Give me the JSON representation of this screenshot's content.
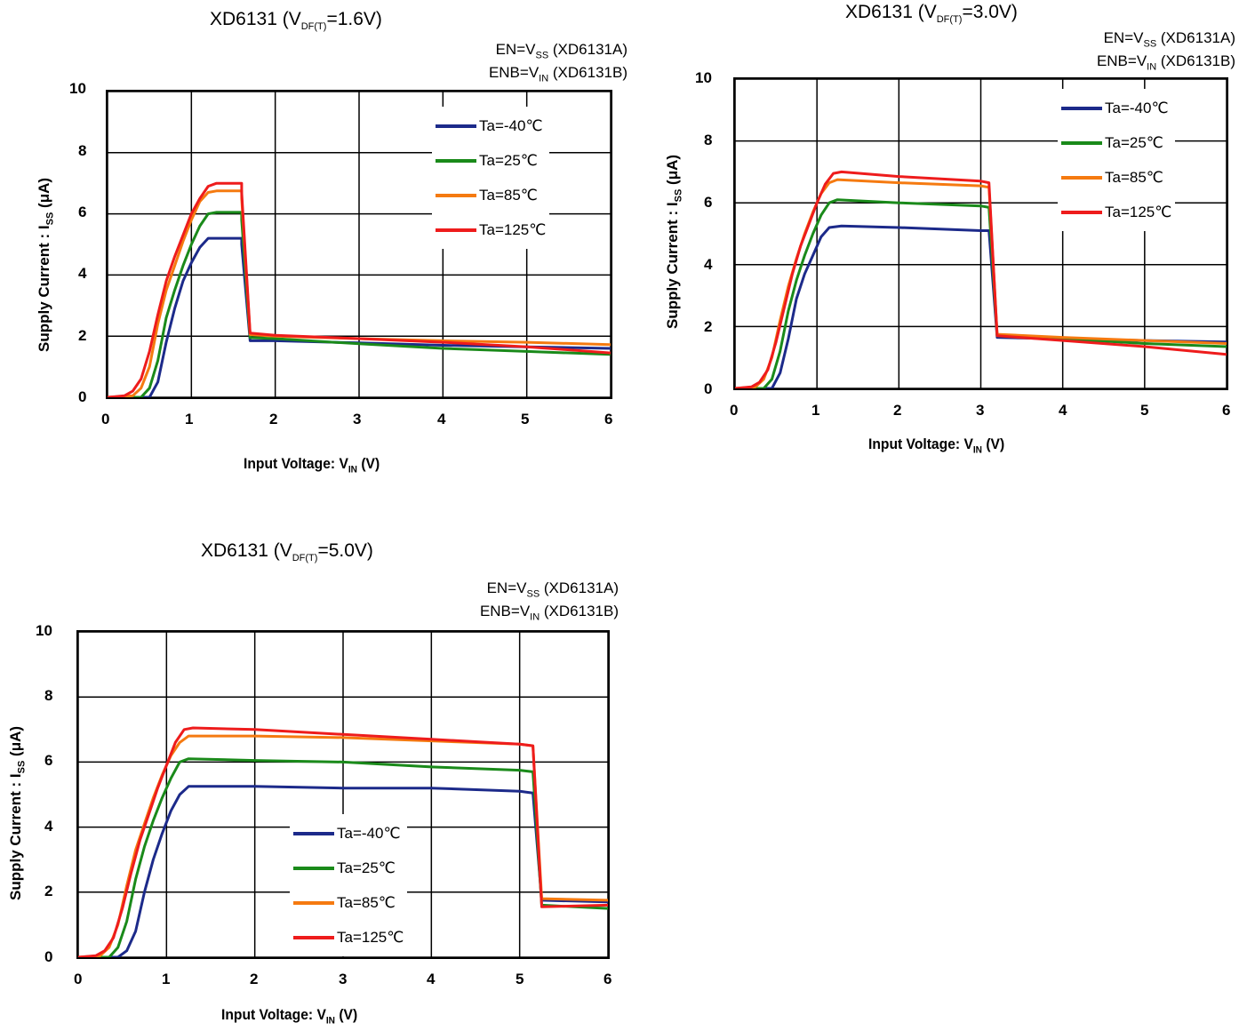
{
  "chart_data": [
    {
      "type": "line",
      "title_main": "XD6131 (V",
      "title_sub": "DF(T)",
      "title_tail": "=1.6V)",
      "cond1_main": "EN=V",
      "cond1_sub": "SS",
      "cond1_tail": " (XD6131A)",
      "cond2_main": "ENB=V",
      "cond2_sub": "IN",
      "cond2_tail": " (XD6131B)",
      "xlabel_main": "Input Voltage: V",
      "xlabel_sub": "IN",
      "xlabel_tail": " (V)",
      "ylabel_main": "Supply Current : I",
      "ylabel_sub": "SS",
      "ylabel_tail": " (μA)",
      "xlim": [
        0,
        6
      ],
      "ylim": [
        0,
        10
      ],
      "xticks": [
        "0",
        "1",
        "2",
        "3",
        "4",
        "5",
        "6"
      ],
      "yticks": [
        "0",
        "2",
        "4",
        "6",
        "8",
        "10"
      ],
      "grid": true,
      "legend_position": "top-right",
      "series": [
        {
          "name": "Ta=-40℃",
          "color": "#1c2a8a",
          "points": [
            [
              0,
              0
            ],
            [
              0.5,
              0
            ],
            [
              0.6,
              0.5
            ],
            [
              0.7,
              1.8
            ],
            [
              0.8,
              2.9
            ],
            [
              0.9,
              3.8
            ],
            [
              1.0,
              4.4
            ],
            [
              1.1,
              4.9
            ],
            [
              1.2,
              5.2
            ],
            [
              1.6,
              5.2
            ],
            [
              1.6,
              5.0
            ],
            [
              1.7,
              1.85
            ],
            [
              2,
              1.85
            ],
            [
              3,
              1.78
            ],
            [
              4,
              1.7
            ],
            [
              5,
              1.65
            ],
            [
              6,
              1.6
            ]
          ]
        },
        {
          "name": "Ta=25℃",
          "color": "#1a8a1a",
          "points": [
            [
              0,
              0
            ],
            [
              0.4,
              0
            ],
            [
              0.5,
              0.3
            ],
            [
              0.6,
              1.2
            ],
            [
              0.7,
              2.6
            ],
            [
              0.8,
              3.5
            ],
            [
              0.9,
              4.3
            ],
            [
              1.0,
              5.0
            ],
            [
              1.1,
              5.6
            ],
            [
              1.2,
              6.0
            ],
            [
              1.3,
              6.05
            ],
            [
              1.6,
              6.05
            ],
            [
              1.6,
              5.8
            ],
            [
              1.7,
              1.95
            ],
            [
              2,
              1.92
            ],
            [
              3,
              1.75
            ],
            [
              4,
              1.6
            ],
            [
              5,
              1.5
            ],
            [
              6,
              1.4
            ]
          ]
        },
        {
          "name": "Ta=85℃",
          "color": "#f57a10",
          "points": [
            [
              0,
              0
            ],
            [
              0.3,
              0.05
            ],
            [
              0.4,
              0.3
            ],
            [
              0.5,
              1.0
            ],
            [
              0.6,
              2.4
            ],
            [
              0.7,
              3.5
            ],
            [
              0.8,
              4.3
            ],
            [
              0.9,
              5.1
            ],
            [
              1.0,
              5.8
            ],
            [
              1.1,
              6.4
            ],
            [
              1.2,
              6.7
            ],
            [
              1.3,
              6.75
            ],
            [
              1.6,
              6.75
            ],
            [
              1.6,
              6.5
            ],
            [
              1.7,
              2.05
            ],
            [
              2,
              2.0
            ],
            [
              3,
              1.92
            ],
            [
              4,
              1.85
            ],
            [
              5,
              1.8
            ],
            [
              6,
              1.72
            ]
          ]
        },
        {
          "name": "Ta=125℃",
          "color": "#ee1c1c",
          "points": [
            [
              0,
              0
            ],
            [
              0.2,
              0.05
            ],
            [
              0.3,
              0.2
            ],
            [
              0.4,
              0.6
            ],
            [
              0.5,
              1.5
            ],
            [
              0.6,
              2.7
            ],
            [
              0.7,
              3.8
            ],
            [
              0.8,
              4.6
            ],
            [
              0.9,
              5.3
            ],
            [
              1.0,
              6.0
            ],
            [
              1.1,
              6.5
            ],
            [
              1.2,
              6.9
            ],
            [
              1.3,
              7.0
            ],
            [
              1.6,
              7.0
            ],
            [
              1.6,
              6.7
            ],
            [
              1.7,
              2.1
            ],
            [
              2,
              2.03
            ],
            [
              3,
              1.92
            ],
            [
              4,
              1.8
            ],
            [
              5,
              1.65
            ],
            [
              6,
              1.45
            ]
          ]
        }
      ]
    },
    {
      "type": "line",
      "title_main": "XD6131 (V",
      "title_sub": "DF(T)",
      "title_tail": "=3.0V)",
      "cond1_main": "EN=V",
      "cond1_sub": "SS",
      "cond1_tail": " (XD6131A)",
      "cond2_main": "ENB=V",
      "cond2_sub": "IN",
      "cond2_tail": " (XD6131B)",
      "xlabel_main": "Input Voltage: V",
      "xlabel_sub": "IN",
      "xlabel_tail": " (V)",
      "ylabel_main": "Supply Current : I",
      "ylabel_sub": "SS",
      "ylabel_tail": " (μA)",
      "xlim": [
        0,
        6
      ],
      "ylim": [
        0,
        10
      ],
      "xticks": [
        "0",
        "1",
        "2",
        "3",
        "4",
        "5",
        "6"
      ],
      "yticks": [
        "0",
        "2",
        "4",
        "6",
        "8",
        "10"
      ],
      "grid": true,
      "legend_position": "top-right",
      "series": [
        {
          "name": "Ta=-40℃",
          "color": "#1c2a8a",
          "points": [
            [
              0,
              0
            ],
            [
              0.45,
              0
            ],
            [
              0.55,
              0.5
            ],
            [
              0.65,
              1.6
            ],
            [
              0.75,
              2.9
            ],
            [
              0.85,
              3.7
            ],
            [
              0.95,
              4.3
            ],
            [
              1.05,
              4.9
            ],
            [
              1.15,
              5.2
            ],
            [
              1.3,
              5.25
            ],
            [
              2,
              5.2
            ],
            [
              3,
              5.1
            ],
            [
              3.1,
              5.1
            ],
            [
              3.2,
              1.65
            ],
            [
              4,
              1.6
            ],
            [
              5,
              1.55
            ],
            [
              6,
              1.5
            ]
          ]
        },
        {
          "name": "Ta=25℃",
          "color": "#1a8a1a",
          "points": [
            [
              0,
              0
            ],
            [
              0.35,
              0
            ],
            [
              0.45,
              0.3
            ],
            [
              0.55,
              1.2
            ],
            [
              0.65,
              2.5
            ],
            [
              0.75,
              3.5
            ],
            [
              0.85,
              4.3
            ],
            [
              0.95,
              5.0
            ],
            [
              1.05,
              5.6
            ],
            [
              1.15,
              6.0
            ],
            [
              1.25,
              6.1
            ],
            [
              2,
              6.0
            ],
            [
              3,
              5.9
            ],
            [
              3.1,
              5.85
            ],
            [
              3.2,
              1.7
            ],
            [
              4,
              1.6
            ],
            [
              5,
              1.45
            ],
            [
              6,
              1.35
            ]
          ]
        },
        {
          "name": "Ta=85℃",
          "color": "#f57a10",
          "points": [
            [
              0,
              0
            ],
            [
              0.25,
              0.05
            ],
            [
              0.35,
              0.3
            ],
            [
              0.45,
              1.0
            ],
            [
              0.55,
              2.2
            ],
            [
              0.65,
              3.3
            ],
            [
              0.75,
              4.2
            ],
            [
              0.85,
              5.0
            ],
            [
              0.95,
              5.7
            ],
            [
              1.05,
              6.3
            ],
            [
              1.15,
              6.65
            ],
            [
              1.25,
              6.75
            ],
            [
              2,
              6.65
            ],
            [
              3,
              6.55
            ],
            [
              3.1,
              6.5
            ],
            [
              3.2,
              1.75
            ],
            [
              4,
              1.65
            ],
            [
              5,
              1.55
            ],
            [
              6,
              1.45
            ]
          ]
        },
        {
          "name": "Ta=125℃",
          "color": "#ee1c1c",
          "points": [
            [
              0,
              0
            ],
            [
              0.2,
              0.05
            ],
            [
              0.3,
              0.2
            ],
            [
              0.4,
              0.6
            ],
            [
              0.5,
              1.5
            ],
            [
              0.6,
              2.6
            ],
            [
              0.7,
              3.7
            ],
            [
              0.8,
              4.6
            ],
            [
              0.9,
              5.3
            ],
            [
              1.0,
              6.0
            ],
            [
              1.1,
              6.6
            ],
            [
              1.2,
              6.95
            ],
            [
              1.3,
              7.0
            ],
            [
              2,
              6.85
            ],
            [
              3,
              6.7
            ],
            [
              3.1,
              6.65
            ],
            [
              3.2,
              1.7
            ],
            [
              4,
              1.55
            ],
            [
              5,
              1.35
            ],
            [
              6,
              1.1
            ]
          ]
        }
      ]
    },
    {
      "type": "line",
      "title_main": "XD6131 (V",
      "title_sub": "DF(T)",
      "title_tail": "=5.0V)",
      "cond1_main": "EN=V",
      "cond1_sub": "SS",
      "cond1_tail": " (XD6131A)",
      "cond2_main": "ENB=V",
      "cond2_sub": "IN",
      "cond2_tail": " (XD6131B)",
      "xlabel_main": "Input Voltage: V",
      "xlabel_sub": "IN",
      "xlabel_tail": " (V)",
      "ylabel_main": "Supply Current : I",
      "ylabel_sub": "SS",
      "ylabel_tail": " (μA)",
      "xlim": [
        0,
        6
      ],
      "ylim": [
        0,
        10
      ],
      "xticks": [
        "0",
        "1",
        "2",
        "3",
        "4",
        "5",
        "6"
      ],
      "yticks": [
        "0",
        "2",
        "4",
        "6",
        "8",
        "10"
      ],
      "grid": true,
      "legend_position": "bottom-center",
      "series": [
        {
          "name": "Ta=-40℃",
          "color": "#1c2a8a",
          "points": [
            [
              0,
              0
            ],
            [
              0.45,
              0
            ],
            [
              0.55,
              0.2
            ],
            [
              0.65,
              0.8
            ],
            [
              0.75,
              2.0
            ],
            [
              0.85,
              3.0
            ],
            [
              0.95,
              3.8
            ],
            [
              1.05,
              4.5
            ],
            [
              1.15,
              5.0
            ],
            [
              1.25,
              5.25
            ],
            [
              2,
              5.25
            ],
            [
              3,
              5.2
            ],
            [
              4,
              5.2
            ],
            [
              5,
              5.1
            ],
            [
              5.15,
              5.05
            ],
            [
              5.25,
              1.75
            ],
            [
              6,
              1.7
            ]
          ]
        },
        {
          "name": "Ta=25℃",
          "color": "#1a8a1a",
          "points": [
            [
              0,
              0
            ],
            [
              0.35,
              0
            ],
            [
              0.45,
              0.3
            ],
            [
              0.55,
              1.1
            ],
            [
              0.65,
              2.4
            ],
            [
              0.75,
              3.4
            ],
            [
              0.85,
              4.2
            ],
            [
              0.95,
              4.9
            ],
            [
              1.05,
              5.5
            ],
            [
              1.15,
              6.0
            ],
            [
              1.25,
              6.1
            ],
            [
              2,
              6.05
            ],
            [
              3,
              6.0
            ],
            [
              4,
              5.85
            ],
            [
              5,
              5.75
            ],
            [
              5.15,
              5.7
            ],
            [
              5.25,
              1.6
            ],
            [
              6,
              1.5
            ]
          ]
        },
        {
          "name": "Ta=85℃",
          "color": "#f57a10",
          "points": [
            [
              0,
              0
            ],
            [
              0.25,
              0.05
            ],
            [
              0.35,
              0.3
            ],
            [
              0.45,
              1.0
            ],
            [
              0.55,
              2.2
            ],
            [
              0.65,
              3.3
            ],
            [
              0.75,
              4.1
            ],
            [
              0.85,
              4.9
            ],
            [
              0.95,
              5.6
            ],
            [
              1.05,
              6.2
            ],
            [
              1.15,
              6.6
            ],
            [
              1.25,
              6.8
            ],
            [
              2,
              6.8
            ],
            [
              3,
              6.75
            ],
            [
              4,
              6.65
            ],
            [
              5,
              6.55
            ],
            [
              5.15,
              6.5
            ],
            [
              5.25,
              1.8
            ],
            [
              6,
              1.75
            ]
          ]
        },
        {
          "name": "Ta=125℃",
          "color": "#ee1c1c",
          "points": [
            [
              0,
              0
            ],
            [
              0.2,
              0.05
            ],
            [
              0.3,
              0.2
            ],
            [
              0.4,
              0.6
            ],
            [
              0.5,
              1.5
            ],
            [
              0.6,
              2.6
            ],
            [
              0.7,
              3.6
            ],
            [
              0.8,
              4.4
            ],
            [
              0.9,
              5.2
            ],
            [
              1.0,
              5.9
            ],
            [
              1.1,
              6.6
            ],
            [
              1.2,
              7.0
            ],
            [
              1.3,
              7.05
            ],
            [
              2,
              7.0
            ],
            [
              3,
              6.85
            ],
            [
              4,
              6.7
            ],
            [
              5,
              6.55
            ],
            [
              5.15,
              6.5
            ],
            [
              5.25,
              1.55
            ],
            [
              6,
              1.6
            ]
          ]
        }
      ]
    }
  ]
}
